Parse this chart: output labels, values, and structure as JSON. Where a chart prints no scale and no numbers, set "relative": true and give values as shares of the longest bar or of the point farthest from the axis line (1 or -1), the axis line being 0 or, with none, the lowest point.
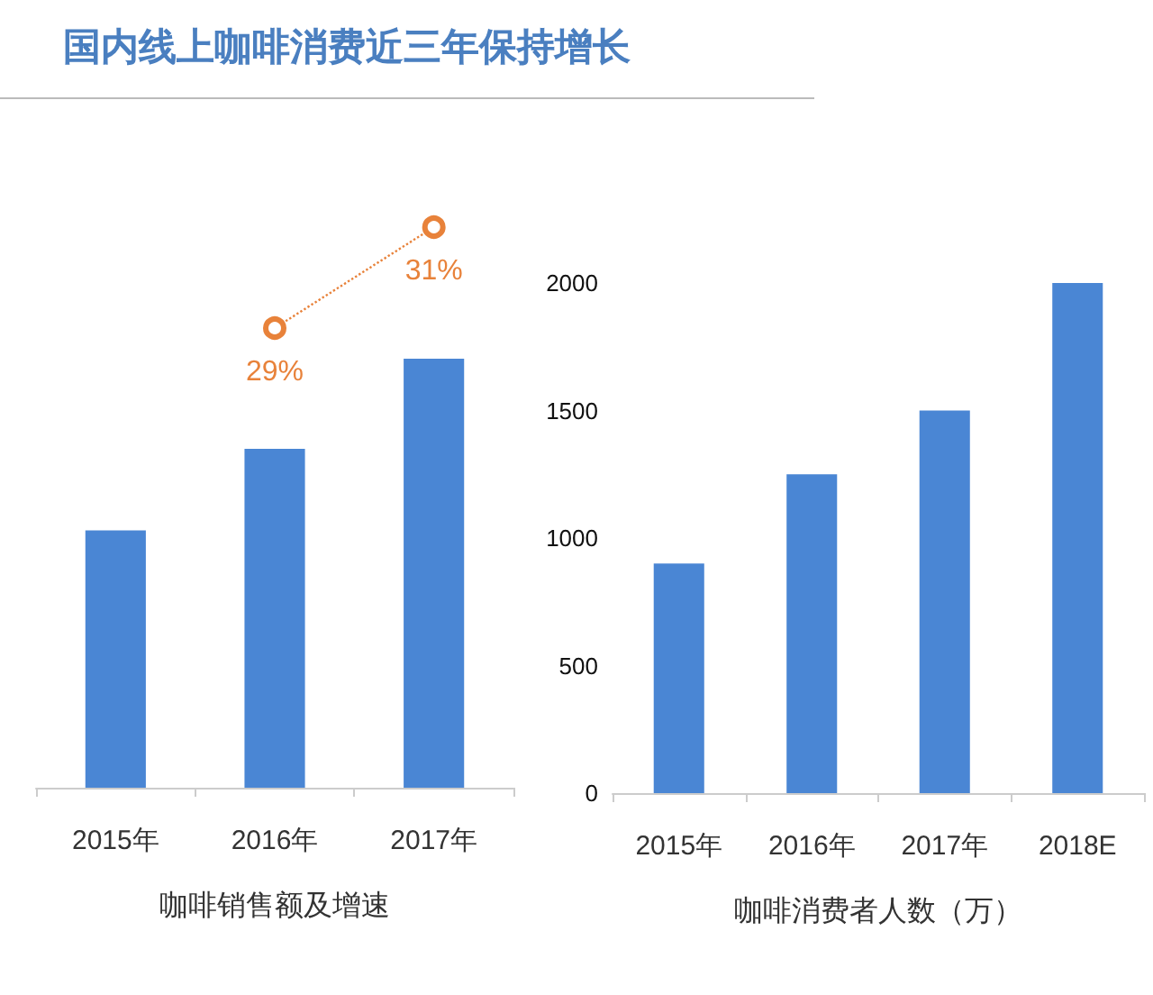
{
  "chart_data": [
    {
      "type": "line",
      "title": "国内线上咖啡消费近三年保持增长",
      "categories": [
        null,
        null,
        null
      ],
      "tick_labels": false,
      "series": [
        {
          "color": "#e8823a",
          "values": [
            null,
            29,
            31
          ],
          "value_labels": [
            null,
            "29%",
            "31%"
          ]
        }
      ],
      "marker": "circle",
      "line_style": "dotted",
      "grid": false
    },
    {
      "type": "bar",
      "xlabel": "咖啡销售额及增速",
      "categories": [
        "2015年",
        "2016年",
        "2017年"
      ],
      "relative": true,
      "series": [
        {
          "color": "#4a86d4",
          "values": [
            0.6,
            0.79,
            1
          ]
        }
      ],
      "grid": false
    },
    {
      "type": "bar",
      "xlabel": "咖啡消费者人数（万）",
      "categories": [
        "2015年",
        "2016年",
        "2017年",
        "2018E"
      ],
      "series": [
        {
          "color": "#4a86d4",
          "values": [
            900,
            1250,
            1500,
            2000
          ]
        }
      ],
      "ylim": [
        0,
        2000
      ],
      "yticks": [
        0,
        500,
        1000,
        1500,
        2000
      ],
      "grid": false
    }
  ]
}
